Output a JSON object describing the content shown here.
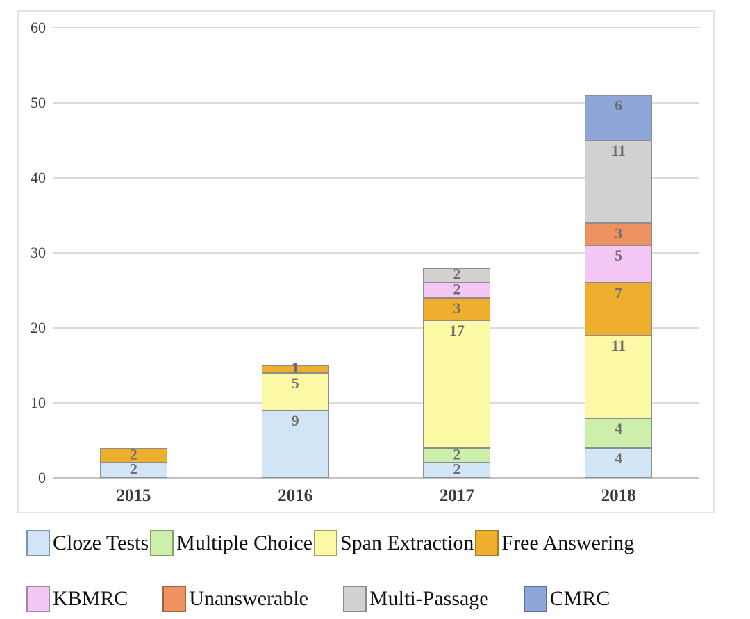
{
  "chart_data": {
    "type": "bar",
    "stacked": true,
    "title": "",
    "xlabel": "",
    "ylabel": "",
    "categories": [
      "2015",
      "2016",
      "2017",
      "2018"
    ],
    "series": [
      {
        "name": "Cloze Tests",
        "fill": "#d2e5f6",
        "border": "#7d94a8",
        "values": [
          2,
          9,
          2,
          4
        ]
      },
      {
        "name": "Multiple Choice",
        "fill": "#ccf0ab",
        "border": "#84a463",
        "values": [
          0,
          0,
          2,
          4
        ]
      },
      {
        "name": "Span Extraction",
        "fill": "#fcf9a6",
        "border": "#a8a35c",
        "values": [
          0,
          5,
          17,
          11
        ]
      },
      {
        "name": "Free Answering",
        "fill": "#f0ae2f",
        "border": "#a87a1e",
        "values": [
          2,
          1,
          3,
          7
        ]
      },
      {
        "name": "KBMRC",
        "fill": "#f4c7f4",
        "border": "#a685a6",
        "values": [
          0,
          0,
          2,
          5
        ]
      },
      {
        "name": "Unanswerable",
        "fill": "#ef9261",
        "border": "#a6633f",
        "values": [
          0,
          0,
          0,
          3
        ]
      },
      {
        "name": "Multi-Passage",
        "fill": "#d2d1cf",
        "border": "#8a8a88",
        "values": [
          0,
          0,
          2,
          11
        ]
      },
      {
        "name": "CMRC",
        "fill": "#8ea6d8",
        "border": "#5f7094",
        "values": [
          0,
          0,
          0,
          6
        ]
      }
    ],
    "totals": [
      4,
      15,
      28,
      51
    ],
    "y_ticks": [
      0,
      10,
      20,
      30,
      40,
      50,
      60
    ],
    "ylim": [
      0,
      60
    ],
    "grid": true,
    "gridline_color": "#dcdcdc",
    "label_color": "#6e6e6e",
    "legend_position": "bottom"
  },
  "legend": {
    "rows": [
      [
        "Cloze Tests",
        "Multiple Choice",
        "Span Extraction",
        "Free Answering"
      ],
      [
        "KBMRC",
        "Unanswerable",
        "Multi-Passage",
        "CMRC"
      ]
    ]
  }
}
